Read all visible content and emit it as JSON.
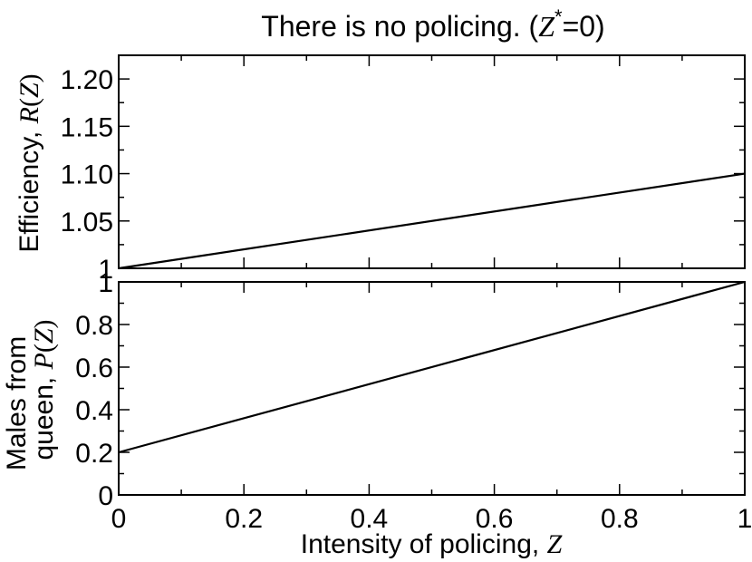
{
  "title": {
    "text": "There is no policing. (",
    "var": "Z",
    "sup": "*",
    "tail": "=0)"
  },
  "top_ylabel": {
    "text": "Efficiency, ",
    "fn": "R",
    "open": "(",
    "var": "Z",
    "close": ")"
  },
  "bottom_ylabel": {
    "line1": "Males from",
    "line2_text": "queen, ",
    "fn": "P",
    "open": "(",
    "var": "Z",
    "close": ")"
  },
  "xlabel": {
    "text": "Intensity of policing, ",
    "var": "Z"
  },
  "chart_data": [
    {
      "type": "line",
      "ylabel": "Efficiency, R(Z)",
      "xlim": [
        0,
        1
      ],
      "ylim": [
        1.0,
        1.225
      ],
      "yticks": [
        1.0,
        1.05,
        1.1,
        1.15,
        1.2
      ],
      "ytick_labels": [
        "1",
        "1.05",
        "1.10",
        "1.15",
        "1.20"
      ],
      "xticks": [
        0,
        0.2,
        0.4,
        0.6,
        0.8,
        1
      ],
      "grid": false,
      "series": [
        {
          "x": [
            0,
            1
          ],
          "y": [
            1.0,
            1.1
          ]
        }
      ]
    },
    {
      "type": "line",
      "ylabel": "Males from queen, P(Z)",
      "xlabel": "Intensity of policing, Z",
      "xlim": [
        0,
        1
      ],
      "ylim": [
        0,
        1
      ],
      "yticks": [
        0,
        0.2,
        0.4,
        0.6,
        0.8,
        1
      ],
      "ytick_labels": [
        "0",
        "0.2",
        "0.4",
        "0.6",
        "0.8",
        "1"
      ],
      "xticks": [
        0,
        0.2,
        0.4,
        0.6,
        0.8,
        1
      ],
      "xtick_labels": [
        "0",
        "0.2",
        "0.4",
        "0.6",
        "0.8",
        "1"
      ],
      "grid": false,
      "series": [
        {
          "x": [
            0,
            1
          ],
          "y": [
            0.2,
            1.0
          ]
        }
      ]
    }
  ]
}
